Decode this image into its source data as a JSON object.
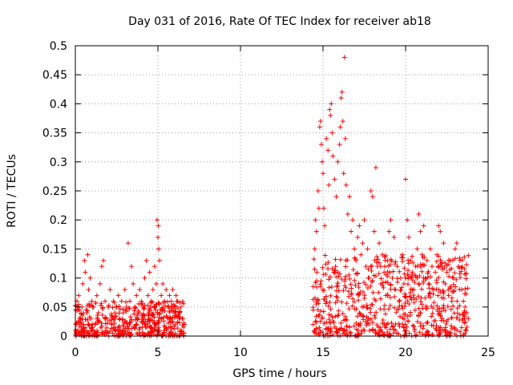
{
  "chart_data": {
    "type": "scatter",
    "title": "Day 031 of 2016, Rate Of TEC Index for receiver ab18",
    "xlabel": "GPS time / hours",
    "ylabel": "ROTI / TECUs",
    "xlim": [
      0,
      25
    ],
    "ylim": [
      0,
      0.5
    ],
    "x_ticks": [
      0,
      5,
      10,
      15,
      20,
      25
    ],
    "x_tick_labels": [
      "0",
      "5",
      "10",
      "15",
      "20",
      "25"
    ],
    "y_ticks": [
      0,
      0.05,
      0.1,
      0.15,
      0.2,
      0.25,
      0.3,
      0.35,
      0.4,
      0.45,
      0.5
    ],
    "y_tick_labels": [
      "0",
      "0.05",
      "0.1",
      "0.15",
      "0.2",
      "0.25",
      "0.3",
      "0.35",
      "0.4",
      "0.45",
      "0.5"
    ],
    "grid": true,
    "marker": "+",
    "color": "#ff0000",
    "series": [
      {
        "values": [
          [
            0.05,
            0.02
          ],
          [
            0.1,
            0.06
          ],
          [
            0.15,
            0.01
          ],
          [
            0.2,
            0.07
          ],
          [
            0.3,
            0.03
          ],
          [
            0.4,
            0.05
          ],
          [
            0.45,
            0.09
          ],
          [
            0.5,
            0.02
          ],
          [
            0.55,
            0.13
          ],
          [
            0.6,
            0.11
          ],
          [
            0.7,
            0.04
          ],
          [
            0.75,
            0.14
          ],
          [
            0.8,
            0.08
          ],
          [
            0.9,
            0.1
          ],
          [
            0.95,
            0.03
          ],
          [
            1.0,
            0.06
          ],
          [
            1.1,
            0.05
          ],
          [
            1.2,
            0.02
          ],
          [
            1.3,
            0.07
          ],
          [
            1.4,
            0.04
          ],
          [
            1.5,
            0.09
          ],
          [
            1.6,
            0.12
          ],
          [
            1.7,
            0.13
          ],
          [
            1.8,
            0.06
          ],
          [
            1.9,
            0.03
          ],
          [
            2.0,
            0.05
          ],
          [
            2.1,
            0.08
          ],
          [
            2.2,
            0.02
          ],
          [
            2.3,
            0.06
          ],
          [
            2.4,
            0.04
          ],
          [
            2.5,
            0.05
          ],
          [
            2.6,
            0.07
          ],
          [
            2.7,
            0.03
          ],
          [
            2.8,
            0.06
          ],
          [
            2.9,
            0.04
          ],
          [
            3.0,
            0.08
          ],
          [
            3.1,
            0.05
          ],
          [
            3.2,
            0.16
          ],
          [
            3.3,
            0.06
          ],
          [
            3.4,
            0.12
          ],
          [
            3.5,
            0.09
          ],
          [
            3.6,
            0.05
          ],
          [
            3.7,
            0.07
          ],
          [
            3.8,
            0.04
          ],
          [
            3.9,
            0.08
          ],
          [
            4.0,
            0.06
          ],
          [
            4.1,
            0.05
          ],
          [
            4.2,
            0.1
          ],
          [
            4.3,
            0.13
          ],
          [
            4.4,
            0.07
          ],
          [
            4.5,
            0.11
          ],
          [
            4.6,
            0.06
          ],
          [
            4.7,
            0.08
          ],
          [
            4.8,
            0.12
          ],
          [
            4.9,
            0.09
          ],
          [
            4.95,
            0.2
          ],
          [
            5.0,
            0.17
          ],
          [
            5.02,
            0.19
          ],
          [
            5.05,
            0.15
          ],
          [
            5.1,
            0.13
          ],
          [
            5.2,
            0.07
          ],
          [
            5.3,
            0.09
          ],
          [
            5.4,
            0.06
          ],
          [
            5.5,
            0.08
          ],
          [
            5.6,
            0.05
          ],
          [
            5.7,
            0.07
          ],
          [
            5.8,
            0.06
          ],
          [
            5.9,
            0.08
          ],
          [
            6.0,
            0.05
          ],
          [
            6.1,
            0.07
          ],
          [
            6.2,
            0.06
          ],
          [
            6.3,
            0.04
          ],
          [
            6.4,
            0.05
          ],
          [
            6.5,
            0.03
          ],
          [
            6.6,
            0.02
          ],
          [
            14.4,
            0.02
          ],
          [
            14.5,
            0.15
          ],
          [
            14.55,
            0.2
          ],
          [
            14.6,
            0.18
          ],
          [
            14.7,
            0.25
          ],
          [
            14.75,
            0.22
          ],
          [
            14.8,
            0.36
          ],
          [
            14.85,
            0.37
          ],
          [
            14.9,
            0.33
          ],
          [
            14.95,
            0.3
          ],
          [
            15.0,
            0.28
          ],
          [
            15.05,
            0.22
          ],
          [
            15.1,
            0.19
          ],
          [
            15.2,
            0.34
          ],
          [
            15.3,
            0.32
          ],
          [
            15.35,
            0.26
          ],
          [
            15.4,
            0.39
          ],
          [
            15.45,
            0.38
          ],
          [
            15.5,
            0.4
          ],
          [
            15.55,
            0.35
          ],
          [
            15.6,
            0.31
          ],
          [
            15.7,
            0.27
          ],
          [
            15.8,
            0.24
          ],
          [
            15.9,
            0.3
          ],
          [
            16.0,
            0.33
          ],
          [
            16.05,
            0.36
          ],
          [
            16.1,
            0.41
          ],
          [
            16.15,
            0.42
          ],
          [
            16.2,
            0.37
          ],
          [
            16.25,
            0.28
          ],
          [
            16.3,
            0.48
          ],
          [
            16.35,
            0.34
          ],
          [
            16.4,
            0.26
          ],
          [
            16.5,
            0.21
          ],
          [
            16.6,
            0.24
          ],
          [
            16.7,
            0.18
          ],
          [
            16.8,
            0.2
          ],
          [
            16.9,
            0.15
          ],
          [
            17.0,
            0.13
          ],
          [
            17.1,
            0.17
          ],
          [
            17.2,
            0.19
          ],
          [
            17.3,
            0.14
          ],
          [
            17.4,
            0.16
          ],
          [
            17.5,
            0.2
          ],
          [
            17.6,
            0.12
          ],
          [
            17.7,
            0.15
          ],
          [
            17.8,
            0.1
          ],
          [
            17.9,
            0.25
          ],
          [
            18.0,
            0.24
          ],
          [
            18.1,
            0.18
          ],
          [
            18.2,
            0.29
          ],
          [
            18.3,
            0.12
          ],
          [
            18.4,
            0.16
          ],
          [
            18.5,
            0.09
          ],
          [
            18.6,
            0.14
          ],
          [
            18.7,
            0.11
          ],
          [
            18.8,
            0.07
          ],
          [
            18.9,
            0.13
          ],
          [
            19.0,
            0.18
          ],
          [
            19.1,
            0.2
          ],
          [
            19.2,
            0.1
          ],
          [
            19.3,
            0.17
          ],
          [
            19.4,
            0.08
          ],
          [
            19.5,
            0.12
          ],
          [
            19.6,
            0.06
          ],
          [
            19.7,
            0.1
          ],
          [
            19.8,
            0.14
          ],
          [
            19.9,
            0.09
          ],
          [
            20.0,
            0.27
          ],
          [
            20.1,
            0.2
          ],
          [
            20.2,
            0.17
          ],
          [
            20.3,
            0.13
          ],
          [
            20.4,
            0.11
          ],
          [
            20.5,
            0.08
          ],
          [
            20.6,
            0.12
          ],
          [
            20.7,
            0.15
          ],
          [
            20.8,
            0.21
          ],
          [
            20.9,
            0.18
          ],
          [
            21.0,
            0.14
          ],
          [
            21.1,
            0.19
          ],
          [
            21.2,
            0.1
          ],
          [
            21.3,
            0.13
          ],
          [
            21.4,
            0.09
          ],
          [
            21.5,
            0.15
          ],
          [
            21.6,
            0.12
          ],
          [
            21.7,
            0.08
          ],
          [
            21.8,
            0.11
          ],
          [
            21.9,
            0.14
          ],
          [
            22.0,
            0.19
          ],
          [
            22.1,
            0.18
          ],
          [
            22.2,
            0.12
          ],
          [
            22.3,
            0.16
          ],
          [
            22.4,
            0.09
          ],
          [
            22.5,
            0.11
          ],
          [
            22.6,
            0.07
          ],
          [
            22.7,
            0.13
          ],
          [
            22.8,
            0.06
          ],
          [
            22.9,
            0.1
          ],
          [
            23.0,
            0.15
          ],
          [
            23.1,
            0.16
          ],
          [
            23.2,
            0.12
          ],
          [
            23.3,
            0.13
          ],
          [
            23.4,
            0.08
          ],
          [
            23.5,
            0.06
          ],
          [
            23.6,
            0.05
          ],
          [
            23.7,
            0.04
          ],
          [
            23.8,
            0.03
          ]
        ]
      }
    ],
    "dense_bands": [
      {
        "x_range": [
          0.0,
          6.6
        ],
        "y_ceiling": 0.06
      },
      {
        "x_range": [
          14.4,
          23.8
        ],
        "y_ceiling": 0.14
      }
    ]
  }
}
